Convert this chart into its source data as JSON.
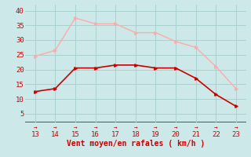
{
  "x": [
    13,
    14,
    15,
    16,
    17,
    18,
    19,
    20,
    21,
    22,
    23
  ],
  "y_wind": [
    12.5,
    13.5,
    20.5,
    20.5,
    21.5,
    21.5,
    20.5,
    20.5,
    17,
    11.5,
    7.5
  ],
  "y_gusts": [
    24.5,
    26.5,
    37.5,
    35.5,
    35.5,
    32.5,
    32.5,
    29.5,
    27.5,
    21,
    13.5
  ],
  "wind_color": "#cc0000",
  "gusts_color": "#ffaaaa",
  "bg_color": "#cce8e8",
  "grid_color": "#aad0d0",
  "xlabel": "Vent moyen/en rafales ( km/h )",
  "xlabel_color": "#cc0000",
  "xlim": [
    12.5,
    23.5
  ],
  "ylim": [
    2,
    42
  ],
  "yticks": [
    5,
    10,
    15,
    20,
    25,
    30,
    35,
    40
  ],
  "xticks": [
    13,
    14,
    15,
    16,
    17,
    18,
    19,
    20,
    21,
    22,
    23
  ],
  "tick_color": "#cc0000"
}
